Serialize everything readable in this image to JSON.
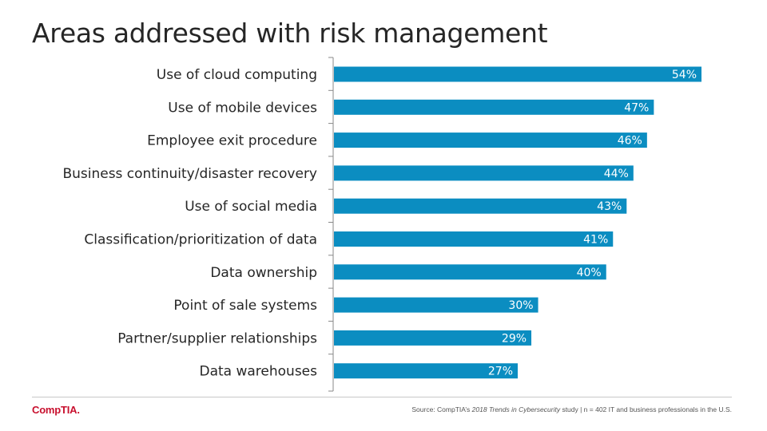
{
  "title": "Areas addressed with risk management",
  "colors": {
    "bar": "#0b8dc1",
    "axis": "#888888",
    "value_text": "#ffffff"
  },
  "chart_data": {
    "type": "bar",
    "orientation": "horizontal",
    "categories": [
      "Use of cloud computing",
      "Use of mobile devices",
      "Employee exit procedure",
      "Business continuity/disaster recovery",
      "Use of social media",
      "Classification/prioritization of data",
      "Data ownership",
      "Point of sale systems",
      "Partner/supplier relationships",
      "Data warehouses"
    ],
    "values": [
      54,
      47,
      46,
      44,
      43,
      41,
      40,
      30,
      29,
      27
    ],
    "value_labels": [
      "54%",
      "47%",
      "46%",
      "44%",
      "43%",
      "41%",
      "40%",
      "30%",
      "29%",
      "27%"
    ],
    "xlim": [
      0,
      60
    ],
    "grid": false,
    "legend": "none"
  },
  "footer": {
    "logo_text": "CompTIA.",
    "source_prefix": "Source: CompTIA’s ",
    "source_italic": "2018 Trends in Cybersecurity",
    "source_suffix": " study | n = 402 IT and business professionals in the U.S."
  }
}
